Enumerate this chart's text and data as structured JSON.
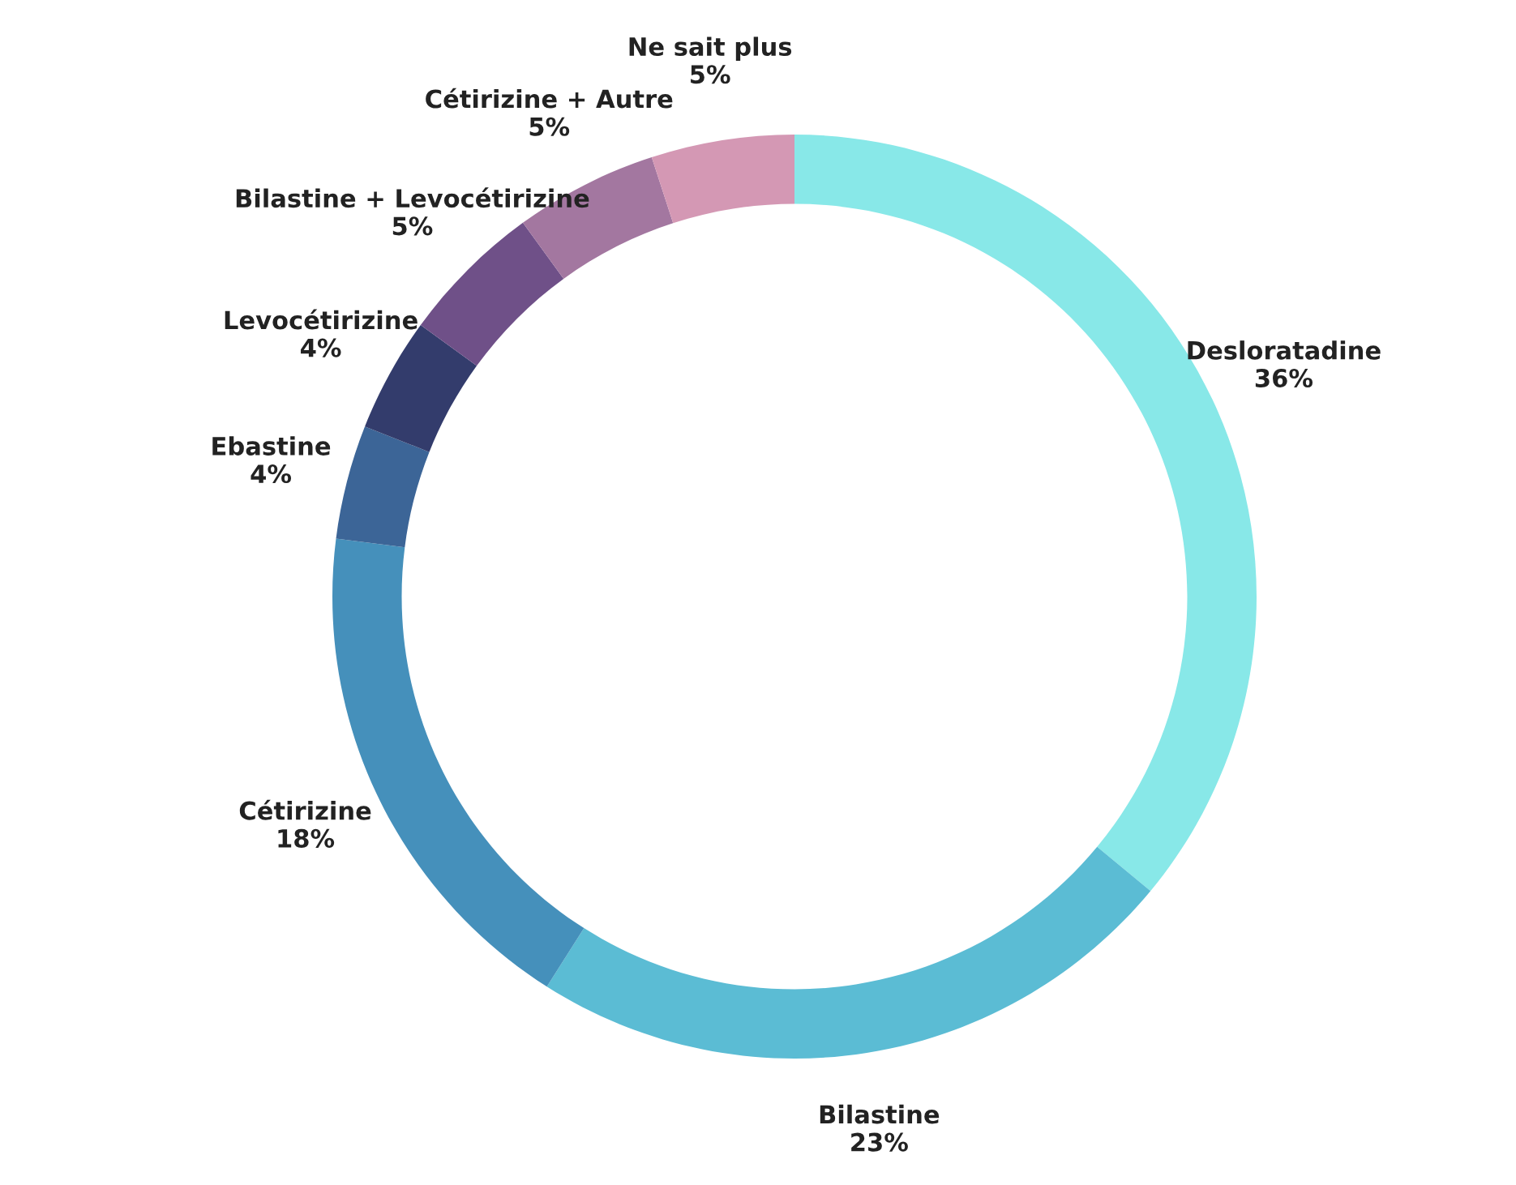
{
  "chart_data": {
    "type": "donut",
    "categories": [
      "Desloratadine",
      "Bilastine",
      "Cétirizine",
      "Ebastine",
      "Levocétirizine",
      "Bilastine + Levocétirizine",
      "Cétirizine + Autre",
      "Ne sait plus"
    ],
    "values": [
      36,
      23,
      18,
      4,
      4,
      5,
      5,
      5
    ],
    "value_labels": [
      "36%",
      "23%",
      "18%",
      "4%",
      "4%",
      "5%",
      "5%",
      "5%"
    ],
    "colors": [
      "#88e8e8",
      "#5bbcd4",
      "#4590bb",
      "#3c6597",
      "#333c6c",
      "#6f5088",
      "#a377a0",
      "#d498b4"
    ],
    "legend": false
  }
}
